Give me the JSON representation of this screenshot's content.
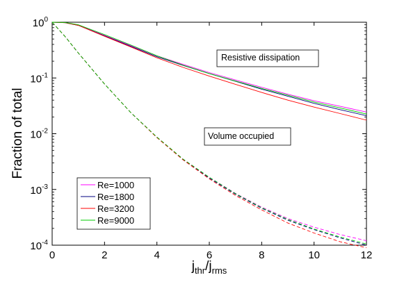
{
  "chart_data": {
    "type": "line",
    "xlim": [
      0,
      12
    ],
    "ylim": [
      0.0001,
      1
    ],
    "y_scale": "log",
    "x_ticks": [
      0,
      2,
      4,
      6,
      8,
      10,
      12
    ],
    "y_ticks": [
      {
        "value": 1,
        "base": "10",
        "exp": "0"
      },
      {
        "value": 0.1,
        "base": "10",
        "exp": "-1"
      },
      {
        "value": 0.01,
        "base": "10",
        "exp": "-2"
      },
      {
        "value": 0.001,
        "base": "10",
        "exp": "-3"
      },
      {
        "value": 0.0001,
        "base": "10",
        "exp": "-4"
      }
    ],
    "ylabel": "Fraction of total",
    "xlabel": {
      "j": "j",
      "thr": "thr",
      "slash": "/j",
      "rms": "rms"
    },
    "grid": false,
    "legend_position": "bottom-left",
    "annotations": [
      {
        "text": "Resistive dissipation",
        "x": 6.5,
        "y": 0.18
      },
      {
        "text": "Volume occupied",
        "x": 6.35,
        "y": 0.0085
      }
    ],
    "x": [
      0,
      0.5,
      1,
      2,
      3,
      4,
      5,
      6,
      7,
      8,
      9,
      10,
      11,
      12
    ],
    "series": [
      {
        "name": "Re=1000",
        "color": "#ff00ff",
        "dissipation": [
          1,
          0.98,
          0.88,
          0.58,
          0.38,
          0.25,
          0.175,
          0.125,
          0.092,
          0.068,
          0.051,
          0.039,
          0.031,
          0.0245
        ],
        "volume": [
          1,
          0.55,
          0.28,
          0.078,
          0.024,
          0.0087,
          0.0035,
          0.00165,
          0.00085,
          0.00048,
          0.0003,
          0.00021,
          0.000155,
          0.00012
        ]
      },
      {
        "name": "Re=1800",
        "color": "#000080",
        "dissipation": [
          1,
          0.98,
          0.88,
          0.57,
          0.37,
          0.24,
          0.168,
          0.12,
          0.087,
          0.063,
          0.047,
          0.035,
          0.027,
          0.021
        ],
        "volume": [
          1,
          0.55,
          0.28,
          0.078,
          0.024,
          0.0086,
          0.0034,
          0.0016,
          0.00082,
          0.00046,
          0.00028,
          0.00019,
          0.000135,
          0.0001
        ]
      },
      {
        "name": "Re=3200",
        "color": "#ff0000",
        "dissipation": [
          1,
          0.98,
          0.88,
          0.56,
          0.36,
          0.23,
          0.155,
          0.108,
          0.077,
          0.055,
          0.04,
          0.03,
          0.023,
          0.0175
        ],
        "volume": [
          1,
          0.55,
          0.28,
          0.078,
          0.024,
          0.0085,
          0.0034,
          0.00155,
          0.00078,
          0.00043,
          0.00025,
          0.000165,
          0.000115,
          9e-05
        ]
      },
      {
        "name": "Re=9000",
        "color": "#00cc00",
        "dissipation": [
          1,
          0.99,
          0.9,
          0.6,
          0.39,
          0.25,
          0.17,
          0.12,
          0.088,
          0.065,
          0.049,
          0.037,
          0.029,
          0.0225
        ],
        "volume": [
          1,
          0.55,
          0.28,
          0.078,
          0.024,
          0.0087,
          0.0035,
          0.00165,
          0.00084,
          0.00047,
          0.00029,
          0.000195,
          0.00014,
          0.000105
        ]
      }
    ]
  }
}
